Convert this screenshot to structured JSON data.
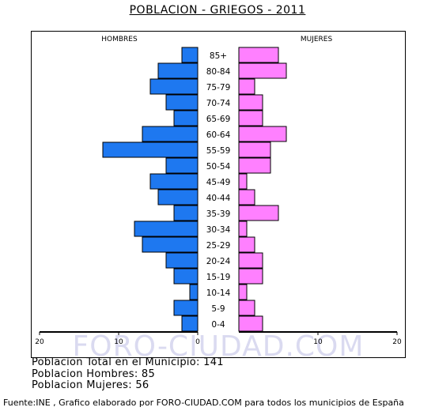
{
  "title": "POBLACION - GRIEGOS - 2011",
  "chart_data": {
    "type": "bar",
    "orientation": "horizontal",
    "xlabel_left": "HOMBRES",
    "xlabel_right": "MUJERES",
    "xlim": [
      0,
      20
    ],
    "x_ticks": [
      "20",
      "10",
      "0",
      "10",
      "20"
    ],
    "categories": [
      "85+",
      "80-84",
      "75-79",
      "70-74",
      "65-69",
      "60-64",
      "55-59",
      "50-54",
      "45-49",
      "40-44",
      "35-39",
      "30-34",
      "25-29",
      "20-24",
      "15-19",
      "10-14",
      "5-9",
      "0-4"
    ],
    "series": [
      {
        "name": "HOMBRES",
        "color": "#1e78f0",
        "values": [
          2,
          5,
          6,
          4,
          3,
          7,
          12,
          4,
          6,
          5,
          3,
          8,
          7,
          4,
          3,
          1,
          3,
          2
        ]
      },
      {
        "name": "MUJERES",
        "color": "#ff80ff",
        "values": [
          5,
          6,
          2,
          3,
          3,
          6,
          4,
          4,
          1,
          2,
          5,
          1,
          2,
          3,
          3,
          1,
          2,
          3
        ]
      }
    ],
    "watermark": "FORO-CIUDAD.COM"
  },
  "footer": {
    "total": "Poblacion Total en el Municipio: 141",
    "men": "Poblacion Hombres: 85",
    "women": "Poblacion Mujeres: 56",
    "source": "Fuente:INE , Grafico elaborado por FORO-CIUDAD.COM para todos los municipios de España"
  }
}
